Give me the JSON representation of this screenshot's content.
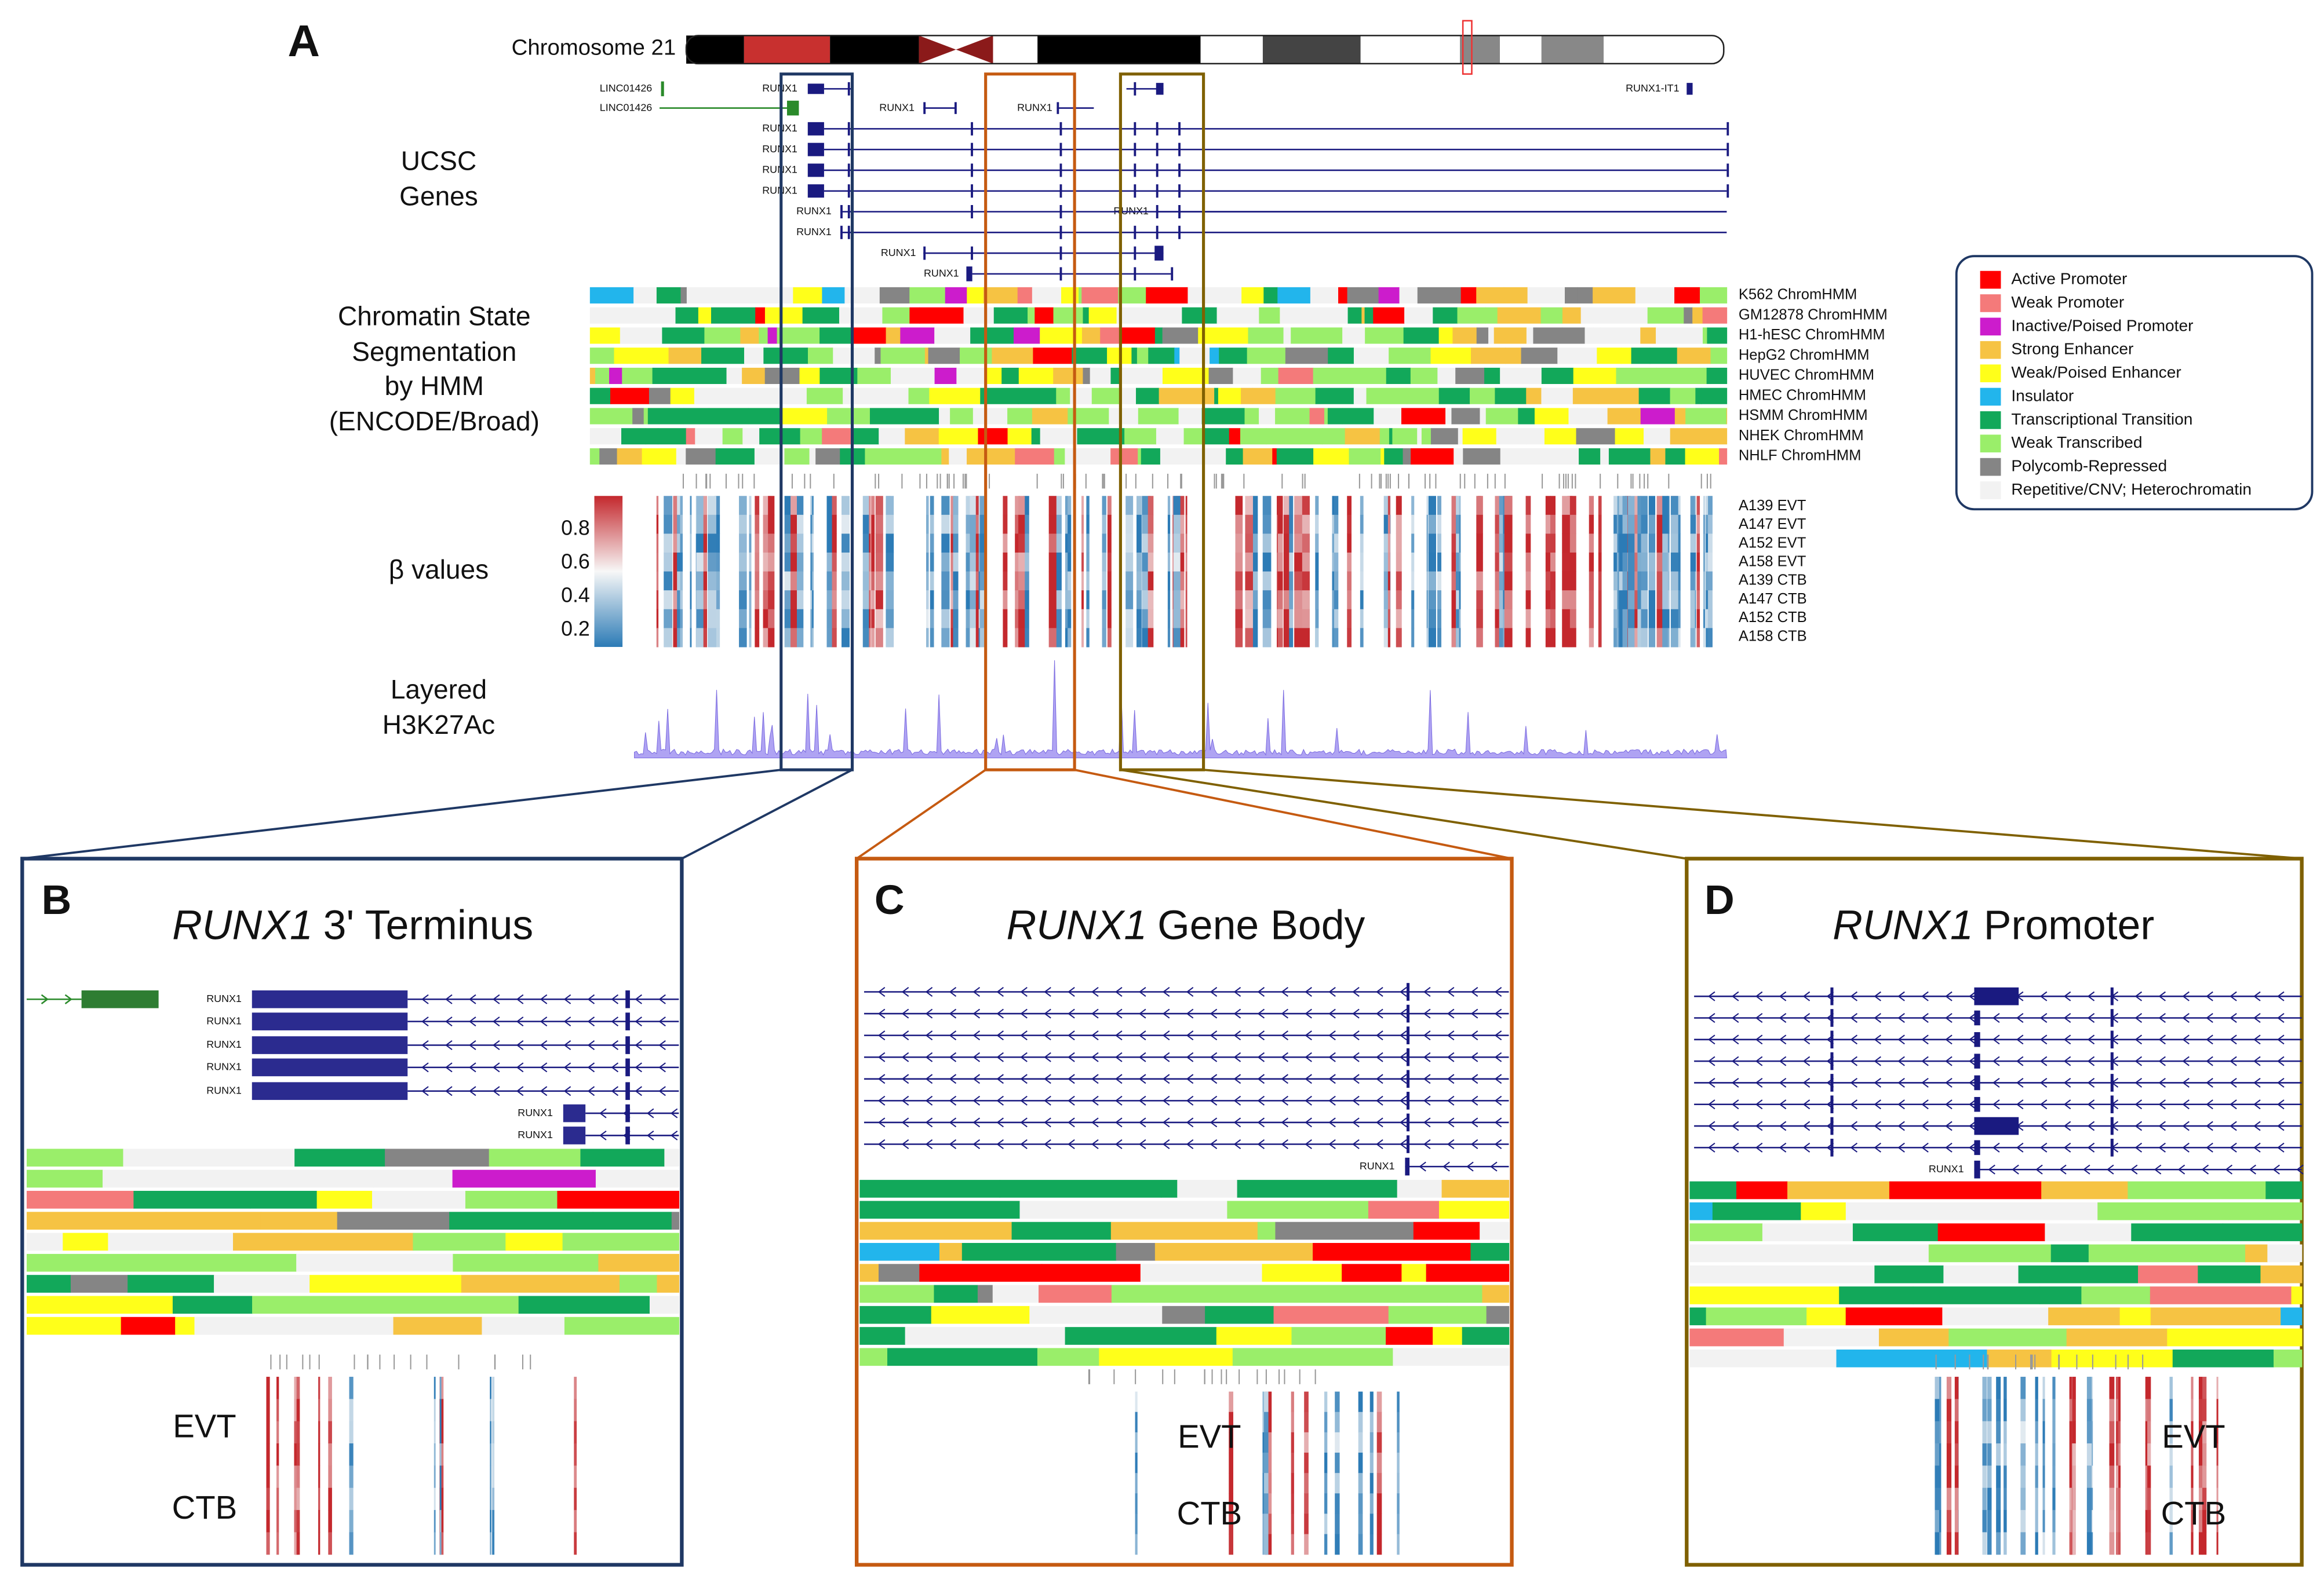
{
  "figure_label": "A",
  "chromosome": "Chromosome 21",
  "track_labels": {
    "genes": [
      "UCSC",
      "Genes"
    ],
    "chromatin": [
      "Chromatin State",
      "Segmentation",
      "by HMM",
      "(ENCODE/Broad)"
    ],
    "beta": "β values",
    "h3k27ac": [
      "Layered",
      "H3K27Ac"
    ]
  },
  "genes": [
    "LINC01426",
    "LINC01426",
    "RUNX1",
    "RUNX1",
    "RUNX1",
    "RUNX1",
    "RUNX1",
    "RUNX1",
    "RUNX1",
    "RUNX1",
    "RUNX1",
    "RUNX1",
    "RUNX1",
    "RUNX1",
    "RUNX1-IT1"
  ],
  "chromhmm_tracks": [
    "K562 ChromHMM",
    "GM12878 ChromHMM",
    "H1-hESC ChromHMM",
    "HepG2 ChromHMM",
    "HUVEC ChromHMM",
    "HMEC ChromHMM",
    "HSMM ChromHMM",
    "NHEK ChromHMM",
    "NHLF ChromHMM"
  ],
  "legend": [
    {
      "label": "Active Promoter",
      "color": "#ff0000"
    },
    {
      "label": "Weak Promoter",
      "color": "#f47a7a"
    },
    {
      "label": "Inactive/Poised Promoter",
      "color": "#cc1ccc"
    },
    {
      "label": "Strong Enhancer",
      "color": "#f6c343"
    },
    {
      "label": "Weak/Poised Enhancer",
      "color": "#ffff1a"
    },
    {
      "label": "Insulator",
      "color": "#22b5ec"
    },
    {
      "label": "Transcriptional Transition",
      "color": "#12a85a"
    },
    {
      "label": "Weak Transcribed",
      "color": "#9aee6a"
    },
    {
      "label": "Polycomb-Repressed",
      "color": "#858585"
    },
    {
      "label": "Repetitive/CNV; Heterochromatin",
      "color": "#f2f2f2"
    }
  ],
  "colorbar_ticks": [
    0.8,
    0.6,
    0.4,
    0.2
  ],
  "colorbar_lim": [
    0.1,
    1.0
  ],
  "samples": [
    "A139 EVT",
    "A147 EVT",
    "A152 EVT",
    "A158 EVT",
    "A139 CTB",
    "A147 CTB",
    "A152 CTB",
    "A158 CTB"
  ],
  "panels": [
    {
      "letter": "B",
      "title_italic": "RUNX1",
      "title_rest": "3' Terminus",
      "gene_labels": [
        "RUNX1",
        "RUNX1",
        "RUNX1",
        "RUNX1",
        "RUNX1",
        "RUNX1",
        "RUNX1"
      ],
      "evt": "EVT",
      "ctb": "CTB"
    },
    {
      "letter": "C",
      "title_italic": "RUNX1",
      "title_rest": "Gene Body",
      "gene_labels": [
        "RUNX1"
      ],
      "evt": "EVT",
      "ctb": "CTB"
    },
    {
      "letter": "D",
      "title_italic": "RUNX1",
      "title_rest": "Promoter",
      "gene_labels": [
        "RUNX1"
      ],
      "evt": "EVT",
      "ctb": "CTB"
    }
  ]
}
